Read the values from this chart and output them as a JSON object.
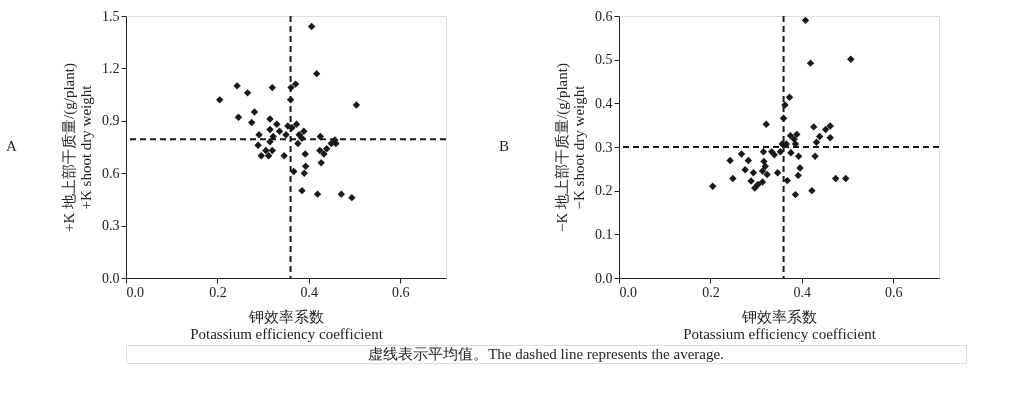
{
  "chart_data": [
    {
      "type": "scatter",
      "xlabel": "钾效率系数\nPotassium efficiency coefficient",
      "ylabel": "+K 地上部干质量/(g/plant)\n+K shoot dry weight",
      "annotations": [
        "A",
        "虚线表示平均值。The dashed line represents the average."
      ],
      "xlim": [
        0,
        0.7
      ],
      "ylim": [
        0,
        1.5
      ],
      "xticks": [
        {
          "value": 0,
          "label": "0.0"
        },
        {
          "value": 0.2,
          "label": "0.2"
        },
        {
          "value": 0.4,
          "label": "0.4"
        },
        {
          "value": 0.6,
          "label": "0.6"
        }
      ],
      "yticks": [
        {
          "value": 0,
          "label": "0.0"
        },
        {
          "value": 0.3,
          "label": "0.3"
        },
        {
          "value": 0.6,
          "label": "0.6"
        },
        {
          "value": 0.9,
          "label": "0.9"
        },
        {
          "value": 1.2,
          "label": "1.2"
        },
        {
          "value": 1.5,
          "label": "1.5"
        }
      ],
      "grid": false,
      "marker": "diamond",
      "ref_lines": [
        {
          "axis": "x",
          "value": 0.36,
          "color": "#1a1a1a",
          "line_style": "dashed"
        },
        {
          "axis": "y",
          "value": 0.795,
          "color": "#1a1a1a",
          "line_style": "dashed"
        }
      ],
      "series": [
        {
          "color": "#1a1a1a",
          "x": [
            0.205,
            0.243,
            0.266,
            0.32,
            0.246,
            0.281,
            0.275,
            0.315,
            0.36,
            0.361,
            0.371,
            0.406,
            0.417,
            0.504,
            0.291,
            0.289,
            0.299,
            0.306,
            0.296,
            0.312,
            0.32,
            0.315,
            0.315,
            0.322,
            0.33,
            0.336,
            0.346,
            0.35,
            0.354,
            0.363,
            0.373,
            0.376,
            0.379,
            0.389,
            0.385,
            0.392,
            0.393,
            0.39,
            0.367,
            0.385,
            0.419,
            0.425,
            0.424,
            0.427,
            0.433,
            0.439,
            0.449,
            0.459,
            0.457,
            0.471,
            0.494
          ],
          "values": [
            1.02,
            1.1,
            1.06,
            1.09,
            0.92,
            0.95,
            0.89,
            0.91,
            1.02,
            1.09,
            1.11,
            1.44,
            1.17,
            0.99,
            0.82,
            0.76,
            null,
            0.73,
            0.7,
            0.7,
            0.73,
            0.78,
            0.85,
            0.81,
            0.88,
            0.84,
            0.7,
            0.82,
            0.87,
            0.86,
            0.88,
            0.77,
            0.82,
            0.84,
            0.8,
            0.71,
            0.64,
            0.6,
            0.61,
            0.5,
            0.48,
            0.81,
            0.73,
            0.66,
            0.71,
            0.74,
            0.77,
            0.77,
            0.79,
            0.48,
            0.46
          ]
        }
      ]
    },
    {
      "type": "scatter",
      "xlabel": "钾效率系数\nPotassium efficiency coefficient",
      "ylabel": "−K 地上部干质量/(g/plant)\n−K shoot dry weight",
      "annotations": [
        "B"
      ],
      "xlim": [
        0,
        0.7
      ],
      "ylim": [
        0,
        0.6
      ],
      "xticks": [
        {
          "value": 0,
          "label": "0.0"
        },
        {
          "value": 0.2,
          "label": "0.2"
        },
        {
          "value": 0.4,
          "label": "0.4"
        },
        {
          "value": 0.6,
          "label": "0.6"
        }
      ],
      "yticks": [
        {
          "value": 0,
          "label": "0.0"
        },
        0.1,
        0.2,
        0.3,
        0.4,
        0.5,
        0.6
      ],
      "grid": false,
      "marker": "diamond",
      "ref_lines": [
        {
          "axis": "x",
          "value": 0.36,
          "color": "#1a1a1a",
          "line_style": "dashed"
        },
        {
          "axis": "y",
          "value": 0.3,
          "color": "#1a1a1a",
          "line_style": "dashed"
        }
      ],
      "series": [
        {
          "color": "#1a1a1a",
          "x": [
            0.205,
            0.243,
            0.249,
            0.268,
            0.283,
            0.276,
            0.294,
            0.289,
            0.297,
            0.304,
            0.314,
            0.314,
            0.317,
            0.316,
            0.322,
            0.32,
            0.324,
            0.334,
            0.34,
            0.347,
            0.353,
            0.357,
            0.36,
            0.363,
            0.373,
            0.368,
            0.366,
            0.375,
            0.376,
            0.383,
            0.386,
            0.389,
            0.393,
            0.396,
            0.392,
            0.386,
            0.408,
            0.419,
            0.507,
            0.422,
            0.426,
            0.428,
            0.429,
            0.432,
            0.439,
            0.452,
            0.462,
            0.462,
            0.474,
            0.496
          ],
          "values": [
            0.21,
            0.269,
            0.228,
            0.284,
            0.269,
            0.248,
            0.241,
            0.222,
            0.206,
            0.214,
            0.22,
            0.245,
            0.267,
            0.289,
            0.352,
            0.256,
            0.237,
            0.289,
            0.282,
            0.241,
            0.289,
            0.307,
            0.366,
            0.396,
            0.414,
            0.223,
            0.307,
            0.326,
            0.287,
            0.318,
            0.307,
            0.329,
            0.279,
            0.252,
            0.235,
            0.191,
            0.59,
            0.492,
            0.501,
            0.2,
            0.346,
            null,
            0.279,
            0.311,
            0.324,
            0.34,
            0.348,
            0.321,
            0.228,
            0.228
          ]
        }
      ]
    }
  ]
}
